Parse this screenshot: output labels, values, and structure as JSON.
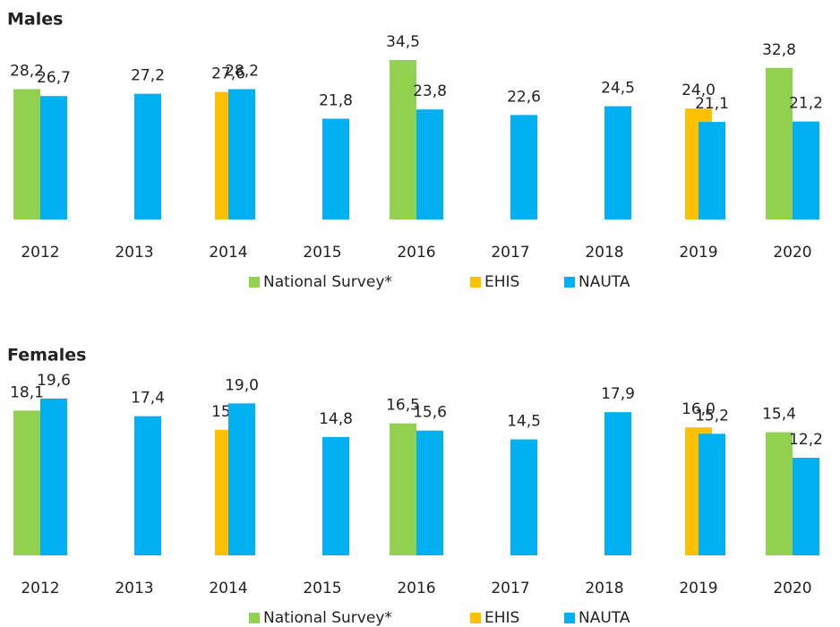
{
  "chart_data": [
    {
      "type": "bar",
      "title": "Males",
      "categories": [
        "2012",
        "2013",
        "2014",
        "2015",
        "2016",
        "2017",
        "2018",
        "2019",
        "2020"
      ],
      "series": [
        {
          "name": "National Survey*",
          "color": "#92d050",
          "values": [
            28.2,
            null,
            null,
            null,
            34.5,
            null,
            null,
            null,
            32.8
          ],
          "value_labels": [
            "28,2",
            null,
            null,
            null,
            "34,5",
            null,
            null,
            null,
            "32,8"
          ]
        },
        {
          "name": "EHIS",
          "color": "#ffc000",
          "values": [
            null,
            null,
            27.6,
            null,
            null,
            null,
            null,
            24.0,
            null
          ],
          "value_labels": [
            null,
            null,
            "27,6",
            null,
            null,
            null,
            null,
            "24,0",
            null
          ]
        },
        {
          "name": "NAUTA",
          "color": "#00b0f0",
          "values": [
            26.7,
            27.2,
            28.2,
            21.8,
            23.8,
            22.6,
            24.5,
            21.1,
            21.2
          ],
          "value_labels": [
            "26,7",
            "27,2",
            "28,2",
            "21,8",
            "23,8",
            "22,6",
            "24,5",
            "21,1",
            "21,2"
          ]
        }
      ]
    },
    {
      "type": "bar",
      "title": "Females",
      "categories": [
        "2012",
        "2013",
        "2014",
        "2015",
        "2016",
        "2017",
        "2018",
        "2019",
        "2020"
      ],
      "series": [
        {
          "name": "National Survey*",
          "color": "#92d050",
          "values": [
            18.1,
            null,
            null,
            null,
            16.5,
            null,
            null,
            null,
            15.4
          ],
          "value_labels": [
            "18,1",
            null,
            null,
            null,
            "16,5",
            null,
            null,
            null,
            "15,4"
          ]
        },
        {
          "name": "EHIS",
          "color": "#ffc000",
          "values": [
            null,
            null,
            15.7,
            null,
            null,
            null,
            null,
            16.0,
            null
          ],
          "value_labels": [
            null,
            null,
            "15,7",
            null,
            null,
            null,
            null,
            "16,0",
            null
          ]
        },
        {
          "name": "NAUTA",
          "color": "#00b0f0",
          "values": [
            19.6,
            17.4,
            19.0,
            14.8,
            15.6,
            14.5,
            17.9,
            15.2,
            12.2
          ],
          "value_labels": [
            "19,6",
            "17,4",
            "19,0",
            "14,8",
            "15,6",
            "14,5",
            "17,9",
            "15,2",
            "12,2"
          ]
        }
      ]
    }
  ]
}
